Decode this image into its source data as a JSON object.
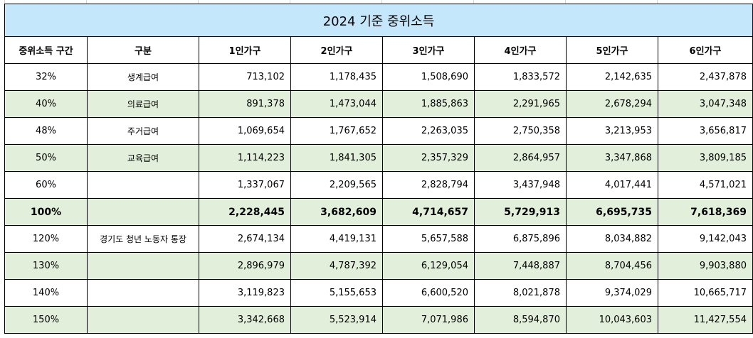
{
  "title": "2024 기준 중위소득",
  "headers": [
    "중위소득 구간",
    "구분",
    "1인가구",
    "2인가구",
    "3인가구",
    "4인가구",
    "5인가구",
    "6인가구"
  ],
  "rows": [
    {
      "pct": "32%",
      "cat": "생계급여",
      "vals": [
        "713,102",
        "1,178,435",
        "1,508,690",
        "1,833,572",
        "2,142,635",
        "2,437,878"
      ],
      "style": "white"
    },
    {
      "pct": "40%",
      "cat": "의료급여",
      "vals": [
        "891,378",
        "1,473,044",
        "1,885,863",
        "2,291,965",
        "2,678,294",
        "3,047,348"
      ],
      "style": "green"
    },
    {
      "pct": "48%",
      "cat": "주거급여",
      "vals": [
        "1,069,654",
        "1,767,652",
        "2,263,035",
        "2,750,358",
        "3,213,953",
        "3,656,817"
      ],
      "style": "white"
    },
    {
      "pct": "50%",
      "cat": "교육급여",
      "vals": [
        "1,114,223",
        "1,841,305",
        "2,357,329",
        "2,864,957",
        "3,347,868",
        "3,809,185"
      ],
      "style": "green"
    },
    {
      "pct": "60%",
      "cat": "",
      "vals": [
        "1,337,067",
        "2,209,565",
        "2,828,794",
        "3,437,948",
        "4,017,441",
        "4,571,021"
      ],
      "style": "white"
    },
    {
      "pct": "100%",
      "cat": "",
      "vals": [
        "2,228,445",
        "3,682,609",
        "4,714,657",
        "5,729,913",
        "6,695,735",
        "7,618,369"
      ],
      "style": "green bold"
    },
    {
      "pct": "120%",
      "cat": "경기도 청년 노동자 통장",
      "vals": [
        "2,674,134",
        "4,419,131",
        "5,657,588",
        "6,875,896",
        "8,034,882",
        "9,142,043"
      ],
      "style": "white"
    },
    {
      "pct": "130%",
      "cat": "",
      "vals": [
        "2,896,979",
        "4,787,392",
        "6,129,054",
        "7,448,887",
        "8,704,456",
        "9,903,880"
      ],
      "style": "green"
    },
    {
      "pct": "140%",
      "cat": "",
      "vals": [
        "3,119,823",
        "5,155,653",
        "6,600,520",
        "8,021,878",
        "9,374,029",
        "10,665,717"
      ],
      "style": "white"
    },
    {
      "pct": "150%",
      "cat": "",
      "vals": [
        "3,342,668",
        "5,523,914",
        "7,071,986",
        "8,594,870",
        "10,043,603",
        "11,427,554"
      ],
      "style": "green"
    }
  ]
}
